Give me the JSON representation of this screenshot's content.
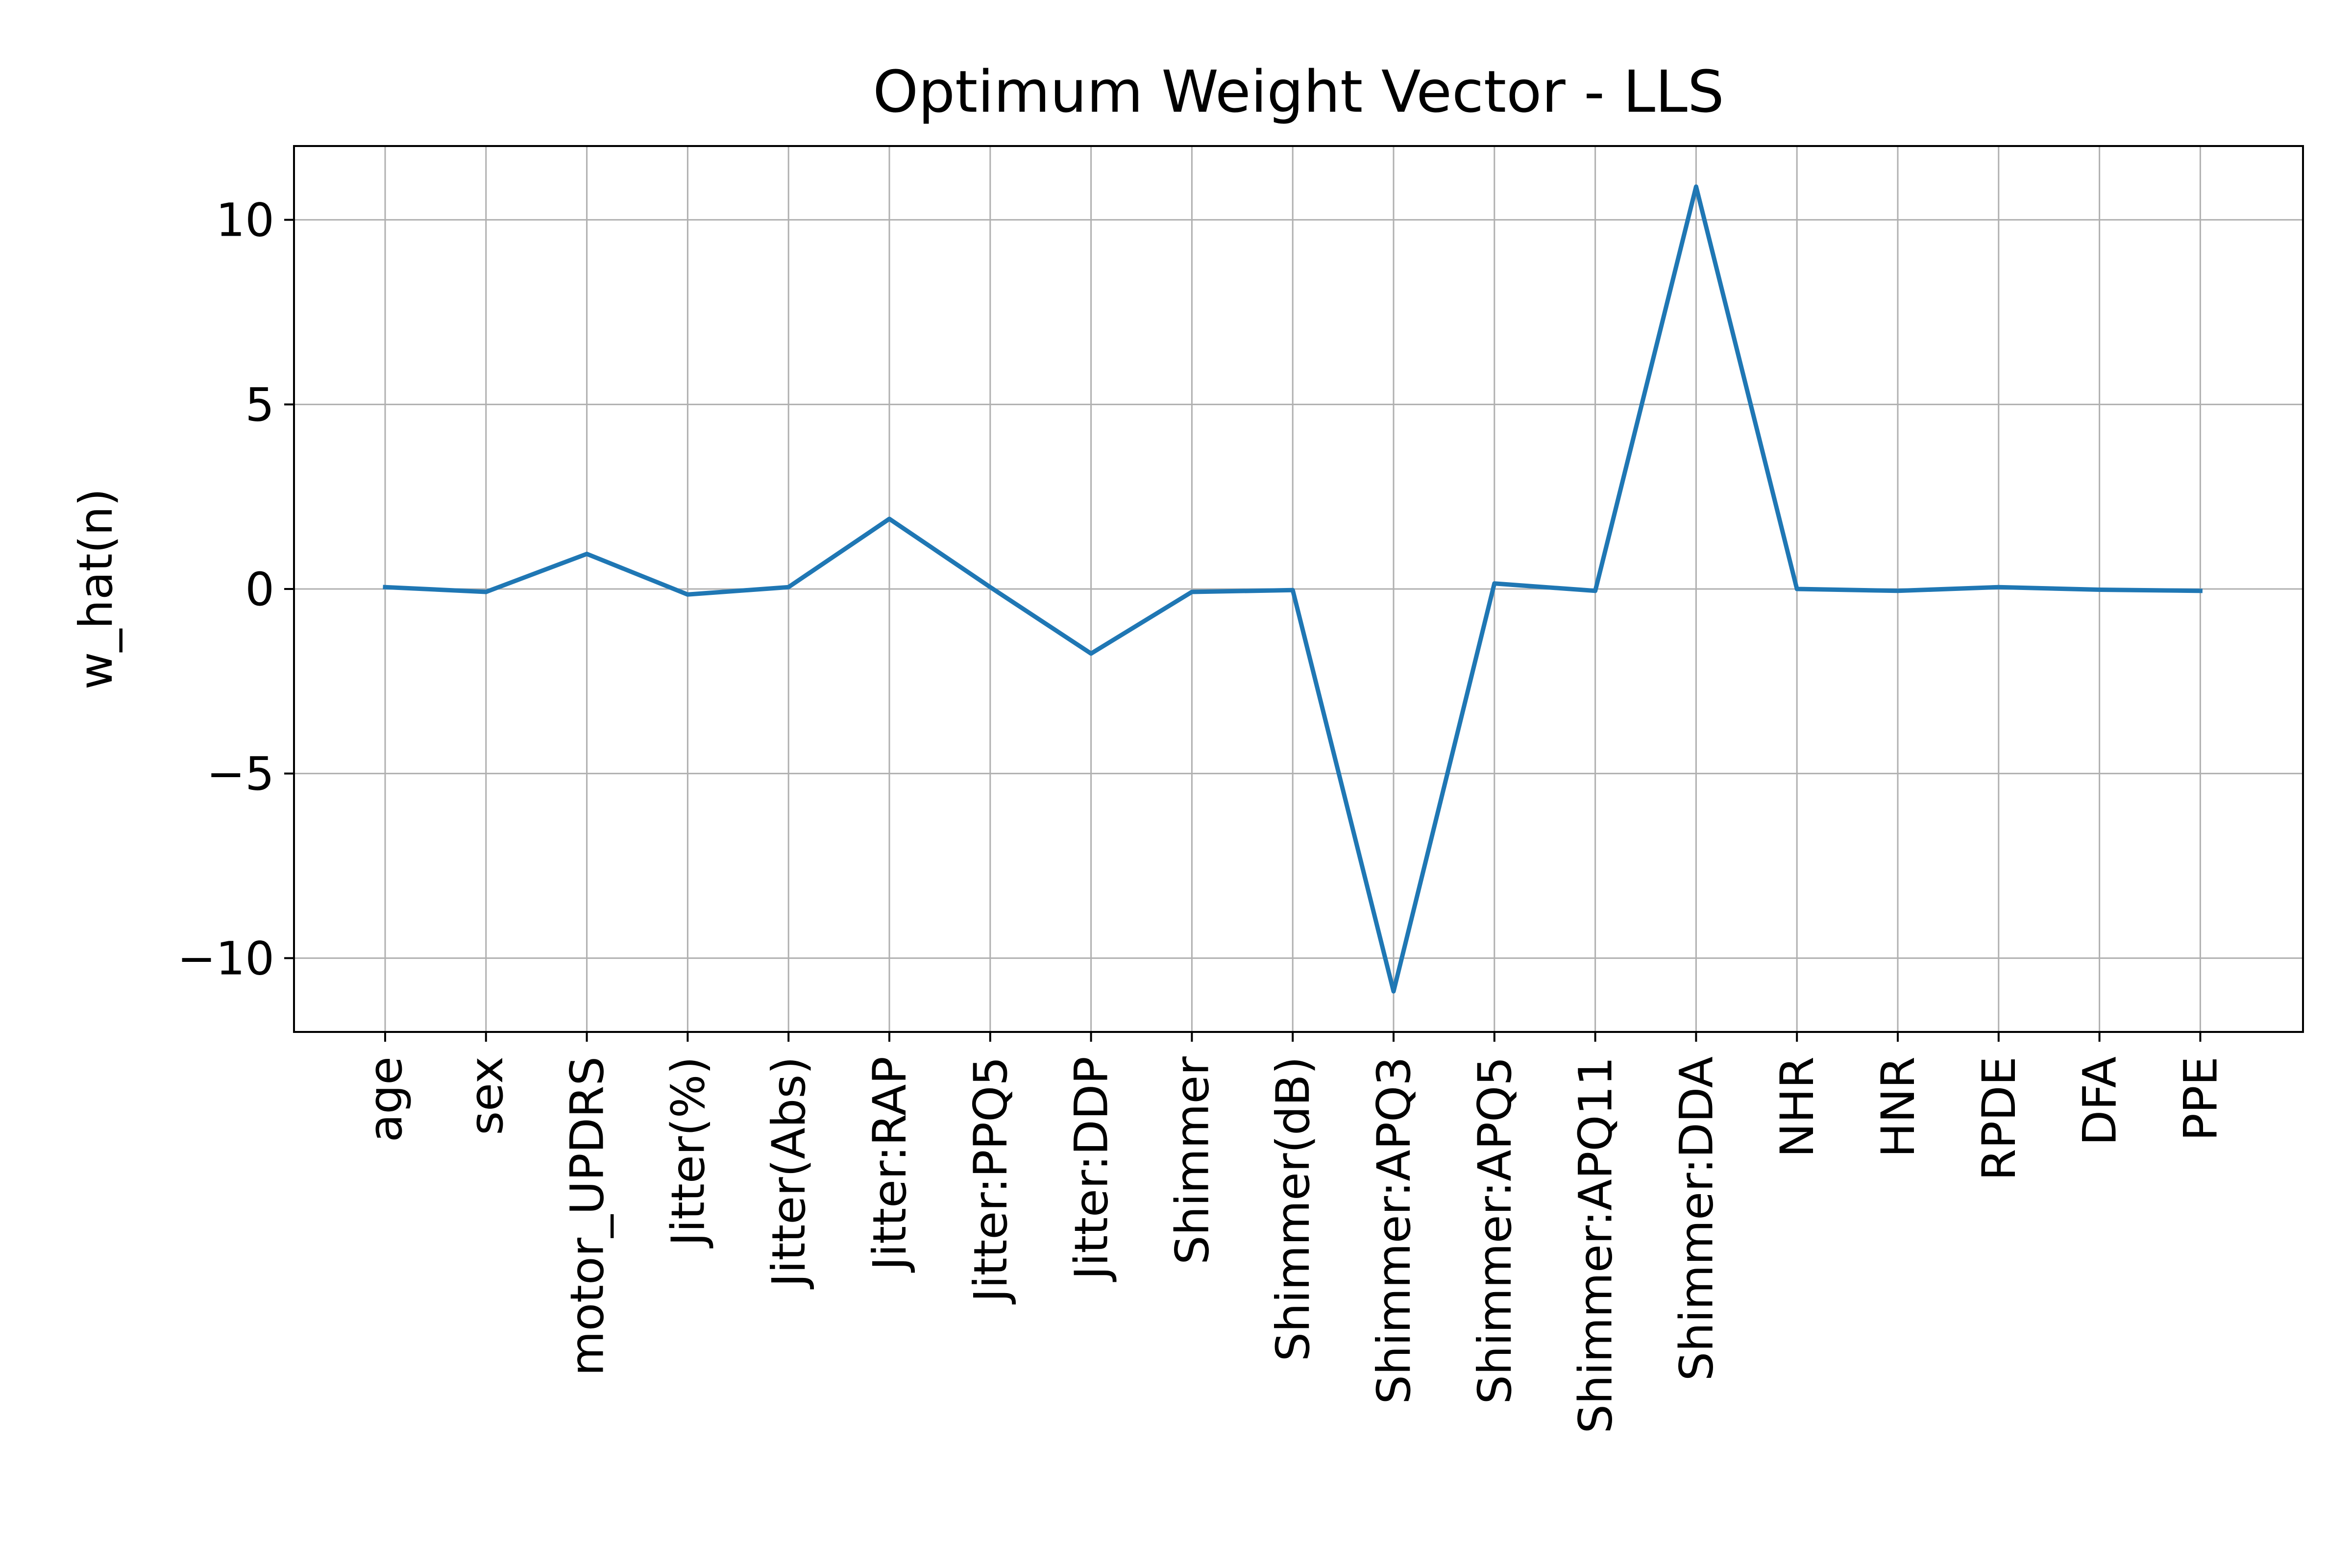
{
  "chart_data": {
    "type": "line",
    "title": "Optimum Weight Vector - LLS",
    "xlabel": "",
    "ylabel": "w_hat(n)",
    "categories": [
      "age",
      "sex",
      "motor_UPDRS",
      "Jitter(%)",
      "Jitter(Abs)",
      "Jitter:RAP",
      "Jitter:PPQ5",
      "Jitter:DDP",
      "Shimmer",
      "Shimmer(dB)",
      "Shimmer:APQ3",
      "Shimmer:APQ5",
      "Shimmer:APQ11",
      "Shimmer:DDA",
      "NHR",
      "HNR",
      "RPDE",
      "DFA",
      "PPE"
    ],
    "series": [
      {
        "values": [
          0.05,
          -0.08,
          0.95,
          -0.15,
          0.05,
          1.9,
          0.05,
          -1.75,
          -0.08,
          -0.03,
          -10.9,
          0.15,
          -0.05,
          10.9,
          0.0,
          -0.05,
          0.05,
          -0.02,
          -0.05
        ],
        "color": "#1f77b4"
      }
    ],
    "ylim": [
      -12.0,
      12.0
    ],
    "yticks": [
      -10,
      -5,
      0,
      5,
      10
    ],
    "ytick_labels": [
      "−10",
      "−5",
      "0",
      "5",
      "10"
    ],
    "grid": true,
    "colors": {
      "line": "#1f77b4",
      "grid": "#b0b0b0",
      "axes": "#000000"
    }
  }
}
